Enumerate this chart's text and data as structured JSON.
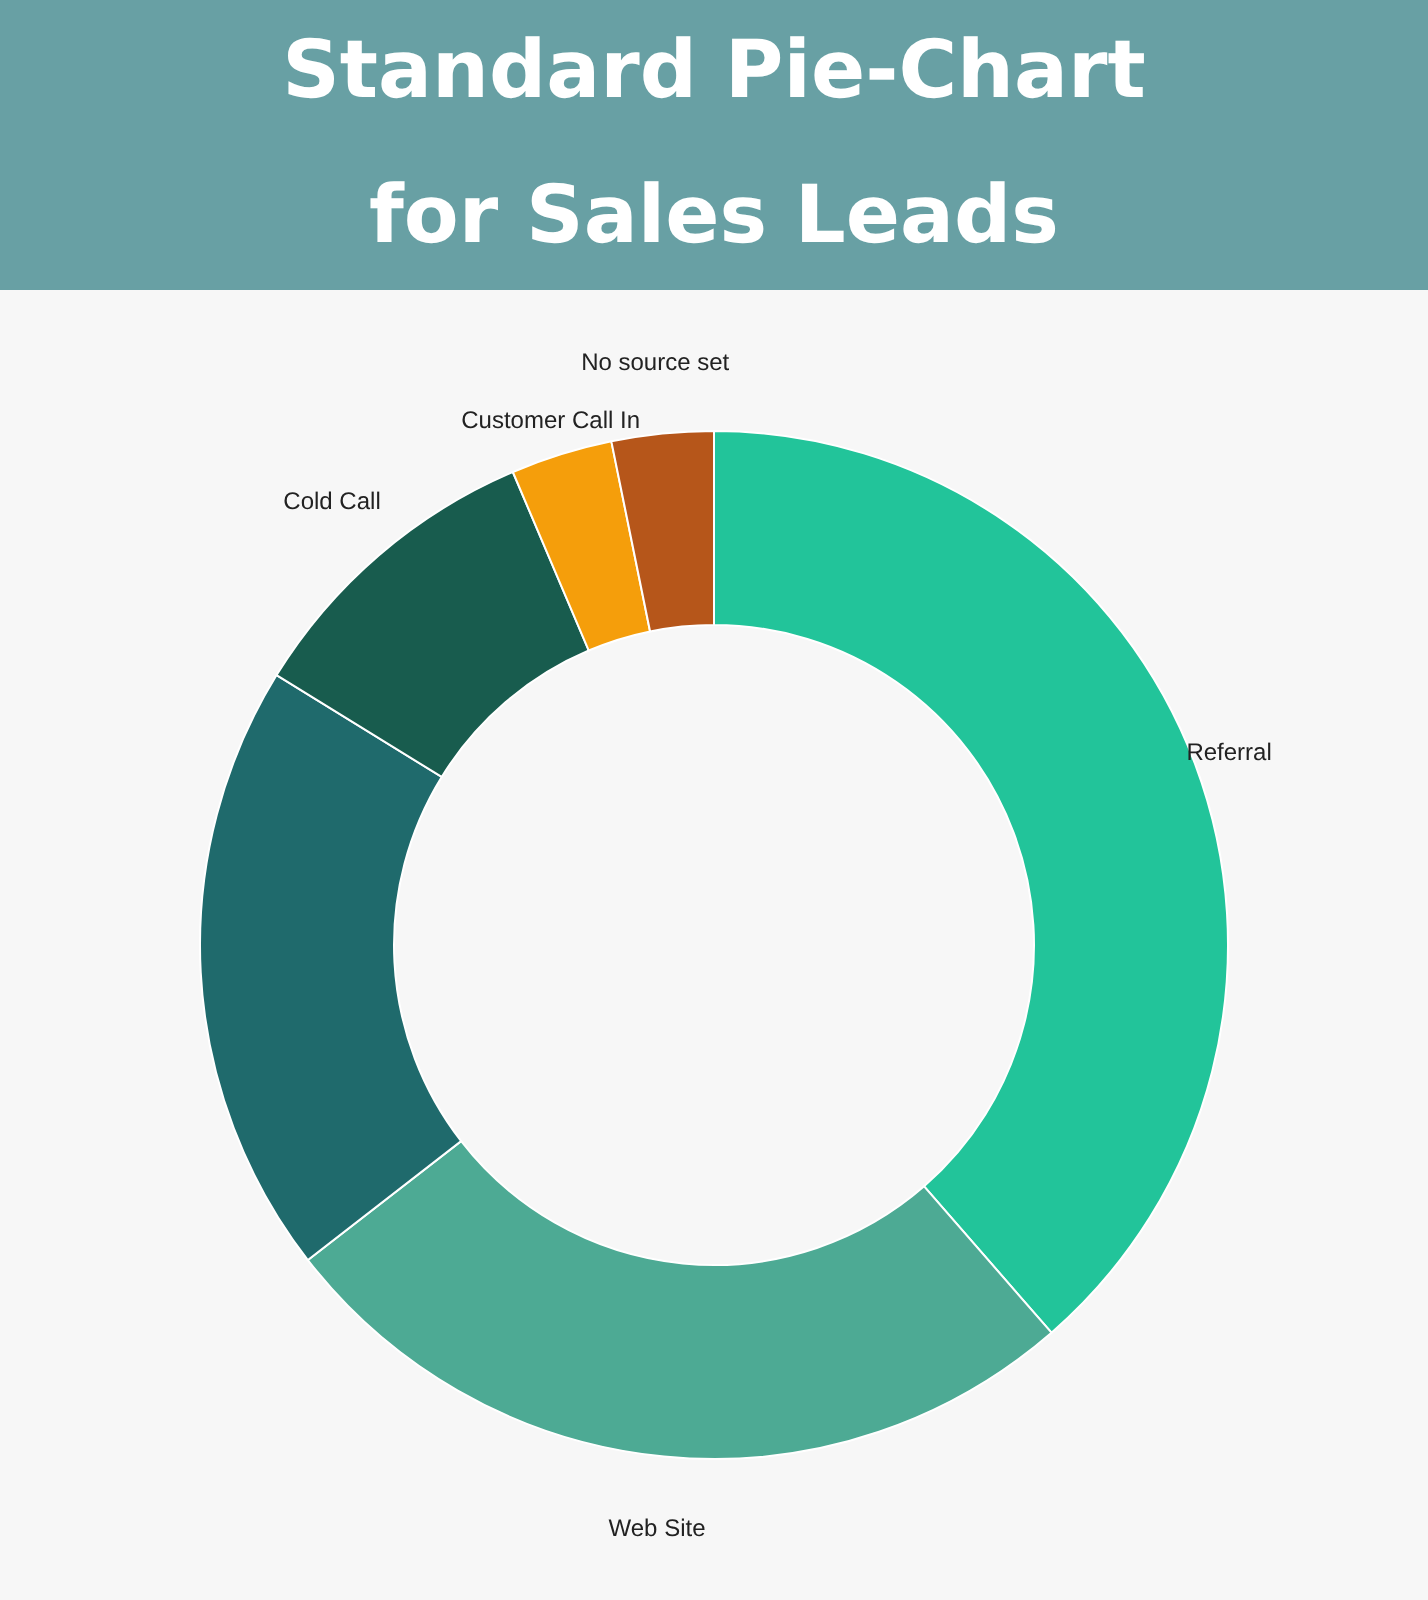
{
  "chart_data": {
    "type": "donut",
    "title": "Standard Pie-Chart\nfor Sales Leads",
    "categories": [
      "Referral",
      "Web Site",
      null,
      "Cold Call",
      "Customer Call In",
      "No source set"
    ],
    "values": [
      38.6,
      25.9,
      19.3,
      9.8,
      3.2,
      3.2
    ],
    "colors": [
      "#22c49a",
      "#4daa94",
      "#1f6a6c",
      "#185c4e",
      "#f59e0b",
      "#b6561a"
    ]
  }
}
